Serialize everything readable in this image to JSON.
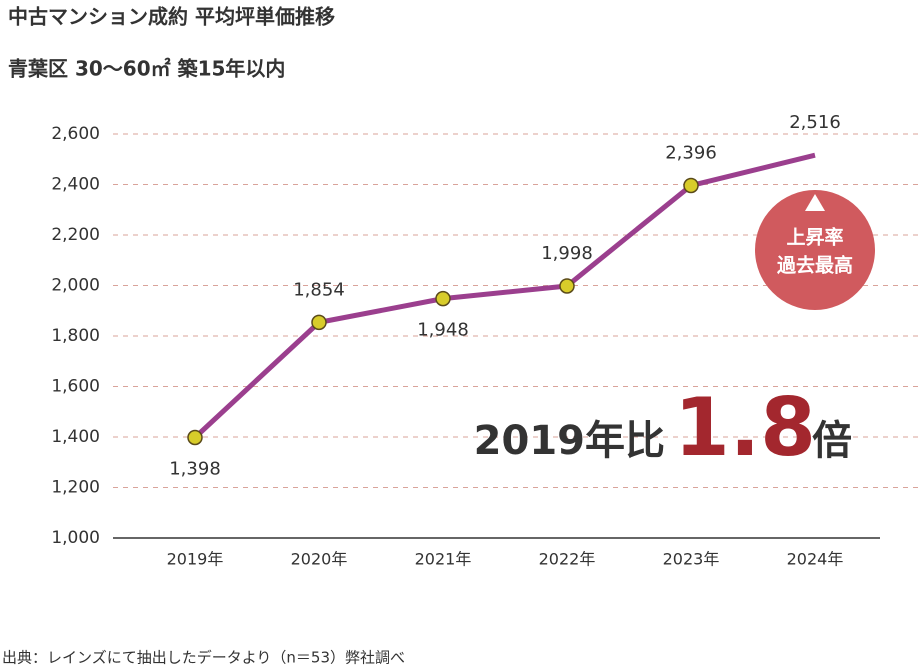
{
  "chart_data": {
    "type": "line",
    "title": "中古マンション成約 平均坪単価推移",
    "subtitle": "青葉区 30〜60㎡ 築15年以内",
    "categories": [
      "2019年",
      "2020年",
      "2021年",
      "2022年",
      "2023年",
      "2024年"
    ],
    "series": [
      {
        "color": "#9b3f8e",
        "values": [
          1398,
          1854,
          1948,
          1998,
          2396,
          2516
        ],
        "value_labels": [
          "1,398",
          "1,854",
          "1,948",
          "1,998",
          "2,396",
          "2,516"
        ]
      }
    ],
    "ylim": [
      1000,
      2600
    ],
    "yticks": [
      {
        "value": 1000,
        "label": "1,000"
      },
      {
        "value": 1200,
        "label": "1,200"
      },
      {
        "value": 1400,
        "label": "1,400"
      },
      {
        "value": 1600,
        "label": "1,600"
      },
      {
        "value": 1800,
        "label": "1,800"
      },
      {
        "value": 2000,
        "label": "2,000"
      },
      {
        "value": 2200,
        "label": "2,200"
      },
      {
        "value": 2400,
        "label": "2,400"
      },
      {
        "value": 2600,
        "label": "2,600"
      }
    ],
    "grid": true,
    "annotations": {
      "badge": [
        "上昇率",
        "過去最高"
      ],
      "comparison": [
        "2019年比",
        "1.8",
        "倍"
      ]
    },
    "source": "出典：レインズにて抽出したデータより（n＝53）弊社調べ"
  }
}
